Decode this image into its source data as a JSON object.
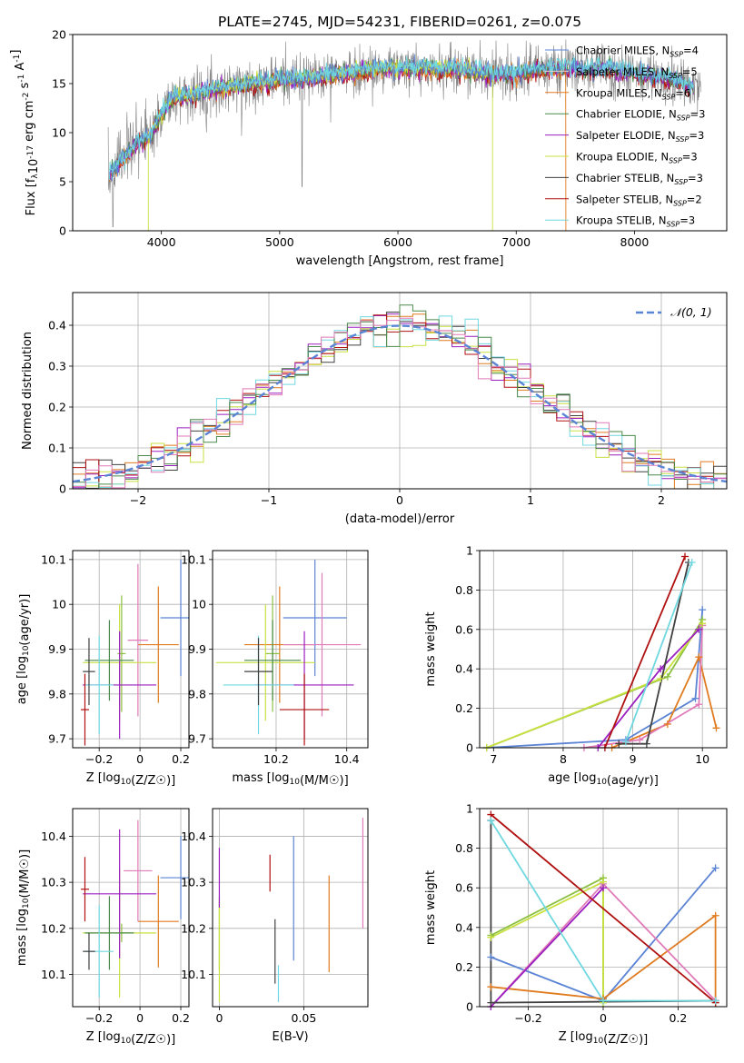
{
  "title": "PLATE=2745, MJD=54231, FIBERID=0261, z=0.075",
  "colors": {
    "Chabrier MILES": "#5b84d4",
    "Salpeter MILES": "#e8d0d0",
    "Kroupa MILES": "#e07b20",
    "Chabrier ELODIE": "#4a8a4a",
    "Salpeter ELODIE": "#9b1fc0",
    "Kroupa ELODIE": "#c8e040",
    "Chabrier STELIB": "#404040",
    "Salpeter STELIB": "#b01010",
    "Kroupa STELIB": "#70d8e0",
    "pink": "#e07ab8",
    "green": "#8cc040",
    "gray": "#808080"
  },
  "chart_data": [
    {
      "id": "spectrum",
      "type": "line",
      "title": "PLATE=2745, MJD=54231, FIBERID=0261, z=0.075",
      "xlabel": "wavelength [Angstrom, rest frame]",
      "ylabel": "Flux [f_λ10^-17 erg cm^-2 s^-1 A^-1]",
      "xlim": [
        3250,
        8780
      ],
      "ylim": [
        0,
        20
      ],
      "xticks": [
        4000,
        5000,
        6000,
        7000,
        8000
      ],
      "yticks": [
        0,
        5,
        10,
        15,
        20
      ],
      "legend": [
        "Chabrier MILES, N_SSP=4",
        "Salpeter MILES, N_SSP=5",
        "Kroupa MILES, N_SSP=6",
        "Chabrier ELODIE, N_SSP=3",
        "Salpeter ELODIE, N_SSP=3",
        "Kroupa ELODIE, N_SSP=3",
        "Chabrier STELIB, N_SSP=3",
        "Salpeter STELIB, N_SSP=2",
        "Kroupa STELIB, N_SSP=3"
      ],
      "legend_placement": "right",
      "grid": false,
      "shape": [
        [
          3550,
          5.5
        ],
        [
          3650,
          7
        ],
        [
          3800,
          9
        ],
        [
          3900,
          9.5
        ],
        [
          4000,
          12
        ],
        [
          4100,
          13.5
        ],
        [
          4300,
          14
        ],
        [
          4500,
          14.5
        ],
        [
          4800,
          15
        ],
        [
          5000,
          15.5
        ],
        [
          5200,
          15.5
        ],
        [
          5500,
          16
        ],
        [
          5800,
          16.5
        ],
        [
          6000,
          16.5
        ],
        [
          6300,
          16.5
        ],
        [
          6500,
          16.5
        ],
        [
          6800,
          16
        ],
        [
          7000,
          16
        ],
        [
          7200,
          16.5
        ],
        [
          7400,
          16.5
        ],
        [
          7600,
          16.5
        ],
        [
          7800,
          16.5
        ],
        [
          8000,
          16
        ],
        [
          8300,
          15.5
        ],
        [
          8500,
          14.5
        ]
      ]
    },
    {
      "id": "residuals",
      "type": "histogram",
      "xlabel": "(data-model)/error",
      "ylabel": "Normed distribution",
      "xlim": [
        -2.5,
        2.5
      ],
      "ylim": [
        0,
        0.48
      ],
      "xticks": [
        -2,
        -1,
        0,
        1,
        2
      ],
      "yticks": [
        0.0,
        0.1,
        0.2,
        0.3,
        0.4
      ],
      "legend": [
        "𝒩(0, 1)"
      ],
      "legend_placement": "top-right",
      "grid": true
    },
    {
      "id": "age-vs-Z",
      "type": "errorbar",
      "xlabel": "Z [log10(Z/Z☉)]",
      "ylabel": "age  [log10(age/yr)]",
      "xlim": [
        -0.33,
        0.24
      ],
      "ylim": [
        9.68,
        10.12
      ],
      "xticks": [
        -0.2,
        0.0,
        0.2
      ],
      "yticks": [
        9.7,
        9.8,
        9.9,
        10.0,
        10.1
      ],
      "grid": true,
      "points": [
        {
          "c": "Chabrier MILES",
          "x": 0.2,
          "y": 9.97,
          "xerr": 0.1,
          "yerr": 0.13
        },
        {
          "c": "Kroupa MILES",
          "x": 0.09,
          "y": 9.91,
          "xerr": 0.1,
          "yerr": 0.13
        },
        {
          "c": "pink",
          "x": -0.01,
          "y": 9.92,
          "xerr": 0.05,
          "yerr": 0.17
        },
        {
          "c": "green",
          "x": -0.09,
          "y": 9.89,
          "xerr": 0.02,
          "yerr": 0.13
        },
        {
          "c": "Kroupa ELODIE",
          "x": -0.1,
          "y": 9.87,
          "xerr": 0.18,
          "yerr": 0.13
        },
        {
          "c": "Salpeter ELODIE",
          "x": -0.1,
          "y": 9.82,
          "xerr": 0.18,
          "yerr": 0.12
        },
        {
          "c": "Chabrier ELODIE",
          "x": -0.15,
          "y": 9.875,
          "xerr": 0.12,
          "yerr": 0.09
        },
        {
          "c": "Kroupa STELIB",
          "x": -0.2,
          "y": 9.82,
          "xerr": 0.07,
          "yerr": 0.11
        },
        {
          "c": "Chabrier STELIB",
          "x": -0.25,
          "y": 9.85,
          "xerr": 0.03,
          "yerr": 0.075
        },
        {
          "c": "Salpeter STELIB",
          "x": -0.27,
          "y": 9.765,
          "xerr": 0.02,
          "yerr": 0.08
        }
      ]
    },
    {
      "id": "age-vs-mass",
      "type": "errorbar",
      "xlabel": "mass [log10(M/M☉)]",
      "xlim": [
        10.02,
        10.46
      ],
      "ylim": [
        9.68,
        10.12
      ],
      "xticks": [
        10.2,
        10.4
      ],
      "yticks": [
        9.7,
        9.8,
        9.9,
        10.0,
        10.1
      ],
      "grid": true,
      "points": [
        {
          "c": "Chabrier MILES",
          "x": 10.31,
          "y": 9.97,
          "xerr": 0.09,
          "yerr": 0.13
        },
        {
          "c": "Kroupa MILES",
          "x": 10.21,
          "y": 9.91,
          "xerr": 0.1,
          "yerr": 0.13
        },
        {
          "c": "pink",
          "x": 10.33,
          "y": 9.91,
          "xerr": 0.11,
          "yerr": 0.16
        },
        {
          "c": "green",
          "x": 10.19,
          "y": 9.89,
          "xerr": 0.02,
          "yerr": 0.13
        },
        {
          "c": "Kroupa ELODIE",
          "x": 10.17,
          "y": 9.87,
          "xerr": 0.14,
          "yerr": 0.13
        },
        {
          "c": "Salpeter ELODIE",
          "x": 10.28,
          "y": 9.82,
          "xerr": 0.14,
          "yerr": 0.12
        },
        {
          "c": "Chabrier ELODIE",
          "x": 10.19,
          "y": 9.875,
          "xerr": 0.08,
          "yerr": 0.09
        },
        {
          "c": "Kroupa STELIB",
          "x": 10.15,
          "y": 9.82,
          "xerr": 0.1,
          "yerr": 0.11
        },
        {
          "c": "Chabrier STELIB",
          "x": 10.15,
          "y": 9.85,
          "xerr": 0.04,
          "yerr": 0.075
        },
        {
          "c": "Salpeter STELIB",
          "x": 10.28,
          "y": 9.765,
          "xerr": 0.07,
          "yerr": 0.08
        }
      ]
    },
    {
      "id": "weight-vs-age",
      "type": "line",
      "xlabel": "age  [log10(age/yr)]",
      "ylabel": "mass weight",
      "xlim": [
        6.8,
        10.35
      ],
      "ylim": [
        0,
        1
      ],
      "xticks": [
        7,
        8,
        9,
        10
      ],
      "yticks": [
        0.0,
        0.2,
        0.4,
        0.6,
        0.8,
        1.0
      ],
      "grid": true,
      "series": [
        {
          "c": "Chabrier MILES",
          "x": [
            6.9,
            8.9,
            9.9,
            10.0
          ],
          "y": [
            0.0,
            0.04,
            0.25,
            0.7
          ]
        },
        {
          "c": "Kroupa MILES",
          "x": [
            8.7,
            9.5,
            9.95,
            10.2
          ],
          "y": [
            0.0,
            0.12,
            0.46,
            0.1
          ]
        },
        {
          "c": "pink",
          "x": [
            8.3,
            9.1,
            9.95,
            10.0
          ],
          "y": [
            0.0,
            0.04,
            0.22,
            0.62
          ]
        },
        {
          "c": "green",
          "x": [
            6.9,
            9.5,
            10.0
          ],
          "y": [
            0.0,
            0.36,
            0.65
          ]
        },
        {
          "c": "Kroupa ELODIE",
          "x": [
            6.9,
            9.4,
            10.0
          ],
          "y": [
            0.0,
            0.35,
            0.63
          ]
        },
        {
          "c": "Salpeter ELODIE",
          "x": [
            8.5,
            9.4,
            9.95
          ],
          "y": [
            0.0,
            0.4,
            0.6
          ]
        },
        {
          "c": "Chabrier STELIB",
          "x": [
            8.8,
            9.2,
            9.8
          ],
          "y": [
            0.02,
            0.02,
            0.94
          ]
        },
        {
          "c": "Salpeter STELIB",
          "x": [
            8.6,
            9.75
          ],
          "y": [
            0.0,
            0.97
          ]
        },
        {
          "c": "Kroupa STELIB",
          "x": [
            8.9,
            9.85
          ],
          "y": [
            0.03,
            0.94
          ]
        }
      ]
    },
    {
      "id": "mass-vs-Z",
      "type": "errorbar",
      "xlabel": "Z [log10(Z/Z☉)]",
      "ylabel": "mass [log10(M/M☉)]",
      "xlim": [
        -0.33,
        0.24
      ],
      "ylim": [
        10.03,
        10.46
      ],
      "xticks": [
        -0.2,
        0.0,
        0.2
      ],
      "yticks": [
        10.1,
        10.2,
        10.3,
        10.4
      ],
      "grid": true,
      "points": [
        {
          "c": "Chabrier MILES",
          "x": 0.2,
          "y": 10.31,
          "xerr": 0.1,
          "yerr": 0.09
        },
        {
          "c": "Kroupa MILES",
          "x": 0.09,
          "y": 10.215,
          "xerr": 0.1,
          "yerr": 0.1
        },
        {
          "c": "pink",
          "x": -0.01,
          "y": 10.325,
          "xerr": 0.07,
          "yerr": 0.11
        },
        {
          "c": "green",
          "x": -0.09,
          "y": 10.19,
          "xerr": 0.02,
          "yerr": 0.02
        },
        {
          "c": "Kroupa ELODIE",
          "x": -0.1,
          "y": 10.19,
          "xerr": 0.18,
          "yerr": 0.14
        },
        {
          "c": "Salpeter ELODIE",
          "x": -0.1,
          "y": 10.275,
          "xerr": 0.18,
          "yerr": 0.14
        },
        {
          "c": "Chabrier ELODIE",
          "x": -0.15,
          "y": 10.19,
          "xerr": 0.12,
          "yerr": 0.08
        },
        {
          "c": "Kroupa STELIB",
          "x": -0.2,
          "y": 10.15,
          "xerr": 0.07,
          "yerr": 0.1
        },
        {
          "c": "Chabrier STELIB",
          "x": -0.25,
          "y": 10.15,
          "xerr": 0.03,
          "yerr": 0.04
        },
        {
          "c": "Salpeter STELIB",
          "x": -0.27,
          "y": 10.285,
          "xerr": 0.02,
          "yerr": 0.07
        }
      ]
    },
    {
      "id": "mass-vs-EBV",
      "type": "errorbar",
      "xlabel": "E(B-V)",
      "xlim": [
        -0.004,
        0.088
      ],
      "ylim": [
        10.03,
        10.46
      ],
      "xticks": [
        0.0,
        0.05
      ],
      "yticks": [
        10.1,
        10.2,
        10.3,
        10.4
      ],
      "grid": true,
      "points": [
        {
          "c": "Chabrier MILES",
          "x": 0.044,
          "y": 10.265,
          "xerr": 0,
          "yerr": 0.135
        },
        {
          "c": "Kroupa MILES",
          "x": 0.065,
          "y": 10.21,
          "xerr": 0,
          "yerr": 0.105
        },
        {
          "c": "pink",
          "x": 0.085,
          "y": 10.32,
          "xerr": 0,
          "yerr": 0.12
        },
        {
          "c": "green",
          "x": 0.0,
          "y": 10.19,
          "xerr": 0,
          "yerr": 0.08
        },
        {
          "c": "Kroupa ELODIE",
          "x": 0.0,
          "y": 10.15,
          "xerr": 0,
          "yerr": 0.11
        },
        {
          "c": "Salpeter ELODIE",
          "x": 0.0,
          "y": 10.31,
          "xerr": 0,
          "yerr": 0.065
        },
        {
          "c": "Chabrier STELIB",
          "x": 0.033,
          "y": 10.15,
          "xerr": 0,
          "yerr": 0.07
        },
        {
          "c": "Salpeter STELIB",
          "x": 0.03,
          "y": 10.32,
          "xerr": 0,
          "yerr": 0.04
        },
        {
          "c": "Kroupa STELIB",
          "x": 0.035,
          "y": 10.08,
          "xerr": 0,
          "yerr": 0.04
        }
      ]
    },
    {
      "id": "weight-vs-Z",
      "type": "line",
      "xlabel": "Z [log10(Z/Z☉)]",
      "ylabel": "mass weight",
      "xlim": [
        -0.33,
        0.33
      ],
      "ylim": [
        0,
        1
      ],
      "xticks": [
        -0.2,
        0.0,
        0.2
      ],
      "yticks": [
        0.0,
        0.2,
        0.4,
        0.6,
        0.8,
        1.0
      ],
      "grid": true,
      "series": [
        {
          "c": "Chabrier MILES",
          "x": [
            -0.3,
            0.0,
            0.3
          ],
          "y": [
            0.25,
            0.03,
            0.7
          ]
        },
        {
          "c": "Kroupa MILES",
          "x": [
            -0.3,
            0.0,
            0.3,
            0.3
          ],
          "y": [
            0.1,
            0.04,
            0.46,
            0.02
          ]
        },
        {
          "c": "pink",
          "x": [
            -0.3,
            0.0,
            0.3
          ],
          "y": [
            0.0,
            0.62,
            0.03
          ]
        },
        {
          "c": "green",
          "x": [
            -0.3,
            0.0,
            0.0
          ],
          "y": [
            0.36,
            0.65,
            0.02
          ]
        },
        {
          "c": "Kroupa ELODIE",
          "x": [
            -0.3,
            0.0,
            0.0
          ],
          "y": [
            0.35,
            0.63,
            0.02
          ]
        },
        {
          "c": "Salpeter ELODIE",
          "x": [
            -0.3,
            0.0
          ],
          "y": [
            0.0,
            0.6
          ]
        },
        {
          "c": "Chabrier STELIB",
          "x": [
            -0.3,
            -0.3,
            0.3
          ],
          "y": [
            0.94,
            0.02,
            0.03
          ]
        },
        {
          "c": "Salpeter STELIB",
          "x": [
            -0.3,
            0.3
          ],
          "y": [
            0.97,
            0.02
          ]
        },
        {
          "c": "Kroupa STELIB",
          "x": [
            -0.3,
            0.0,
            0.3
          ],
          "y": [
            0.94,
            0.03,
            0.03
          ]
        }
      ]
    }
  ]
}
